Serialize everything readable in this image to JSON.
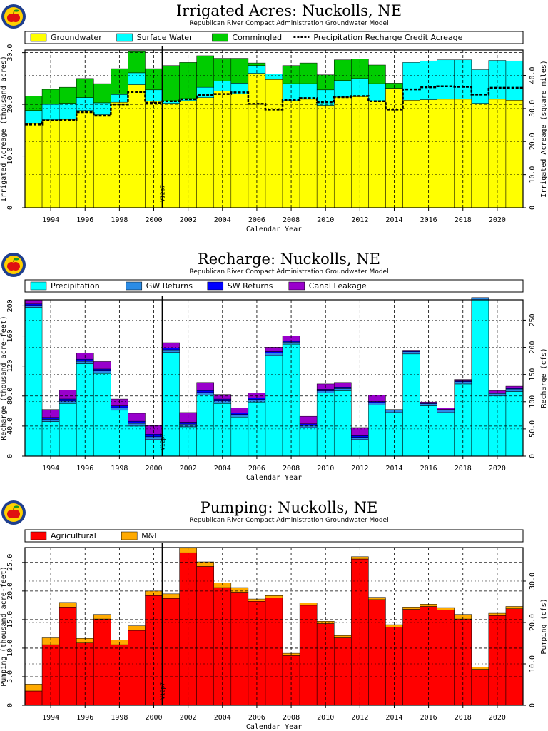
{
  "logo": {
    "icon": "apple-logo-icon"
  },
  "shared": {
    "xlabel": "Calendar Year",
    "vline_label": "V12p7"
  },
  "chart_data": [
    {
      "type": "bar",
      "stacked": true,
      "title": "Irrigated Acres: Nuckolls, NE",
      "subtitle": "Republican River Compact Administration Groundwater Model",
      "xlabel": "Calendar Year",
      "ylabel": "Irrigated Acreage (thousand acres)",
      "y2label": "Irrigated Acreage (square miles)",
      "ylim": [
        0,
        30.5
      ],
      "y2lim": [
        0,
        47.66
      ],
      "yticks": [
        "0",
        "10.0",
        "20.0",
        "30.0"
      ],
      "y2ticks": [
        "0",
        "10.0",
        "20.0",
        "30.0",
        "40.0"
      ],
      "xticks": [
        "1994",
        "1996",
        "1998",
        "2000",
        "2002",
        "2004",
        "2006",
        "2008",
        "2010",
        "2012",
        "2014",
        "2016",
        "2018",
        "2020"
      ],
      "vline_year": 2000.5,
      "grid": true,
      "legend": "top",
      "years": [
        1993,
        1994,
        1995,
        1996,
        1997,
        1998,
        1999,
        2000,
        2001,
        2002,
        2003,
        2004,
        2005,
        2006,
        2007,
        2008,
        2009,
        2010,
        2011,
        2012,
        2013,
        2014,
        2015,
        2016,
        2017,
        2018,
        2019,
        2020,
        2021
      ],
      "series": [
        {
          "name": "Groundwater",
          "color": "#ffff00",
          "values": [
            16.3,
            17.0,
            17.1,
            18.8,
            18.0,
            20.4,
            23.8,
            20.6,
            20.2,
            20.7,
            21.3,
            22.6,
            22.0,
            26.0,
            24.8,
            20.7,
            21.0,
            19.8,
            21.4,
            21.5,
            20.6,
            23.1,
            20.8,
            20.9,
            21.0,
            21.0,
            20.2,
            21.0,
            20.8
          ]
        },
        {
          "name": "Surface Water",
          "color": "#00ffff",
          "values": [
            2.5,
            3.0,
            3.1,
            2.5,
            2.3,
            1.5,
            2.3,
            2.2,
            0.4,
            0.4,
            2.0,
            1.9,
            2.1,
            1.5,
            1.1,
            3.3,
            3.0,
            3.0,
            3.2,
            3.5,
            3.4,
            0.0,
            7.3,
            7.5,
            7.6,
            7.6,
            6.5,
            7.5,
            7.6
          ]
        },
        {
          "name": "Commingled",
          "color": "#00cc00",
          "values": [
            2.8,
            2.9,
            3.1,
            3.7,
            3.7,
            5.0,
            4.1,
            4.1,
            6.9,
            7.0,
            6.1,
            4.4,
            4.8,
            0.5,
            0.0,
            3.5,
            4.0,
            2.9,
            4.0,
            3.8,
            3.6,
            1.0,
            0.0,
            0.0,
            0.0,
            0.0,
            0.0,
            0.0,
            0.0
          ]
        },
        {
          "name": "Precipitation Recharge Credit Acreage",
          "color": "#000000",
          "style": "dashed",
          "values": [
            16.1,
            16.9,
            16.9,
            18.5,
            17.8,
            20.0,
            22.4,
            20.3,
            20.6,
            21.0,
            21.8,
            22.0,
            22.3,
            20.1,
            19.0,
            20.8,
            21.2,
            20.4,
            21.4,
            21.6,
            20.6,
            19.0,
            22.9,
            23.3,
            23.5,
            23.4,
            21.9,
            23.2,
            23.2
          ]
        }
      ]
    },
    {
      "type": "bar",
      "stacked": true,
      "title": "Recharge: Nuckolls, NE",
      "subtitle": "Republican River Compact Administration Groundwater Model",
      "xlabel": "Calendar Year",
      "ylabel": "Recharge (thousand acre-feet)",
      "y2label": "Recharge (cfs)",
      "ylim": [
        0,
        208
      ],
      "y2lim": [
        0,
        287.3
      ],
      "yticks": [
        "0",
        "40.0",
        "80.0",
        "120",
        "160",
        "200"
      ],
      "y2ticks": [
        "0",
        "50.0",
        "100",
        "150",
        "200",
        "250"
      ],
      "xticks": [
        "1994",
        "1996",
        "1998",
        "2000",
        "2002",
        "2004",
        "2006",
        "2008",
        "2010",
        "2012",
        "2014",
        "2016",
        "2018",
        "2020"
      ],
      "vline_year": 2000.5,
      "grid": true,
      "legend": "top",
      "years": [
        1993,
        1994,
        1995,
        1996,
        1997,
        1998,
        1999,
        2000,
        2001,
        2002,
        2003,
        2004,
        2005,
        2006,
        2007,
        2008,
        2009,
        2010,
        2011,
        2012,
        2013,
        2014,
        2015,
        2016,
        2017,
        2018,
        2019,
        2020,
        2021
      ],
      "series": [
        {
          "name": "Precipitation",
          "color": "#00ffff",
          "values": [
            198,
            46,
            70,
            123,
            110,
            61,
            40,
            22,
            138,
            39,
            81,
            70,
            52,
            72,
            134,
            149,
            38,
            84,
            87,
            22,
            68,
            58,
            136,
            67,
            58,
            96,
            208,
            80,
            86
          ]
        },
        {
          "name": "GW Returns",
          "color": "#2b8ce6",
          "values": [
            2.5,
            3.0,
            3.2,
            3.2,
            3.3,
            3.5,
            3.6,
            3.8,
            3.5,
            3.6,
            3.6,
            3.4,
            3.4,
            3.3,
            3.1,
            2.7,
            2.9,
            2.8,
            2.9,
            3.0,
            3.2,
            3.3,
            3.0,
            2.8,
            3.1,
            3.1,
            2.4,
            3.3,
            3.3
          ]
        },
        {
          "name": "SW Returns",
          "color": "#0000ff",
          "values": [
            2.0,
            2.5,
            2.8,
            2.8,
            2.6,
            2.4,
            2.8,
            3.4,
            2.5,
            2.6,
            2.6,
            2.5,
            2.3,
            2.2,
            2.1,
            1.3,
            2.1,
            2.1,
            2.0,
            2.2,
            1.5,
            0.6,
            1.0,
            1.0,
            1.0,
            1.0,
            0.4,
            1.0,
            1.0
          ]
        },
        {
          "name": "Canal Leakage",
          "color": "#9900cc",
          "values": [
            5.5,
            10.5,
            12.0,
            8.0,
            10.0,
            9.0,
            10.6,
            11.6,
            7.0,
            12.8,
            10.8,
            6.1,
            6.3,
            6.5,
            5.8,
            7.0,
            10.0,
            7.1,
            6.1,
            10.8,
            8.3,
            0.1,
            1.0,
            1.2,
            1.9,
            1.9,
            0.2,
            2.7,
            2.7
          ]
        }
      ]
    },
    {
      "type": "bar",
      "stacked": true,
      "title": "Pumping: Nuckolls, NE",
      "subtitle": "Republican River Compact Administration Groundwater Model",
      "xlabel": "Calendar Year",
      "ylabel": "Pumping (thousand acre-feet)",
      "y2label": "Pumping (cfs)",
      "ylim": [
        0,
        27.6
      ],
      "y2lim": [
        0,
        38.1
      ],
      "yticks": [
        "0",
        "5.0",
        "10.0",
        "15.0",
        "20.0",
        "25.0"
      ],
      "y2ticks": [
        "0",
        "10.0",
        "20.0",
        "30.0"
      ],
      "xticks": [
        "1994",
        "1996",
        "1998",
        "2000",
        "2002",
        "2004",
        "2006",
        "2008",
        "2010",
        "2012",
        "2014",
        "2016",
        "2018",
        "2020"
      ],
      "vline_year": 2000.5,
      "grid": true,
      "legend": "top",
      "years": [
        1993,
        1994,
        1995,
        1996,
        1997,
        1998,
        1999,
        2000,
        2001,
        2002,
        2003,
        2004,
        2005,
        2006,
        2007,
        2008,
        2009,
        2010,
        2011,
        2012,
        2013,
        2014,
        2015,
        2016,
        2017,
        2018,
        2019,
        2020,
        2021
      ],
      "series": [
        {
          "name": "Agricultural",
          "color": "#ff0000",
          "values": [
            2.5,
            10.6,
            17.2,
            10.9,
            15.1,
            10.6,
            13.1,
            19.2,
            18.7,
            26.7,
            24.3,
            20.6,
            19.8,
            18.2,
            18.8,
            8.7,
            17.5,
            14.3,
            11.8,
            25.6,
            18.5,
            13.7,
            16.8,
            17.3,
            16.7,
            15.1,
            6.3,
            15.7,
            16.9
          ]
        },
        {
          "name": "M&I",
          "color": "#ffaa00",
          "values": [
            1.2,
            1.2,
            0.8,
            0.8,
            0.8,
            0.8,
            0.8,
            0.8,
            0.8,
            0.8,
            0.8,
            0.8,
            0.8,
            0.4,
            0.4,
            0.4,
            0.4,
            0.4,
            0.4,
            0.4,
            0.4,
            0.4,
            0.4,
            0.4,
            0.4,
            0.8,
            0.4,
            0.4,
            0.4
          ]
        }
      ]
    }
  ]
}
